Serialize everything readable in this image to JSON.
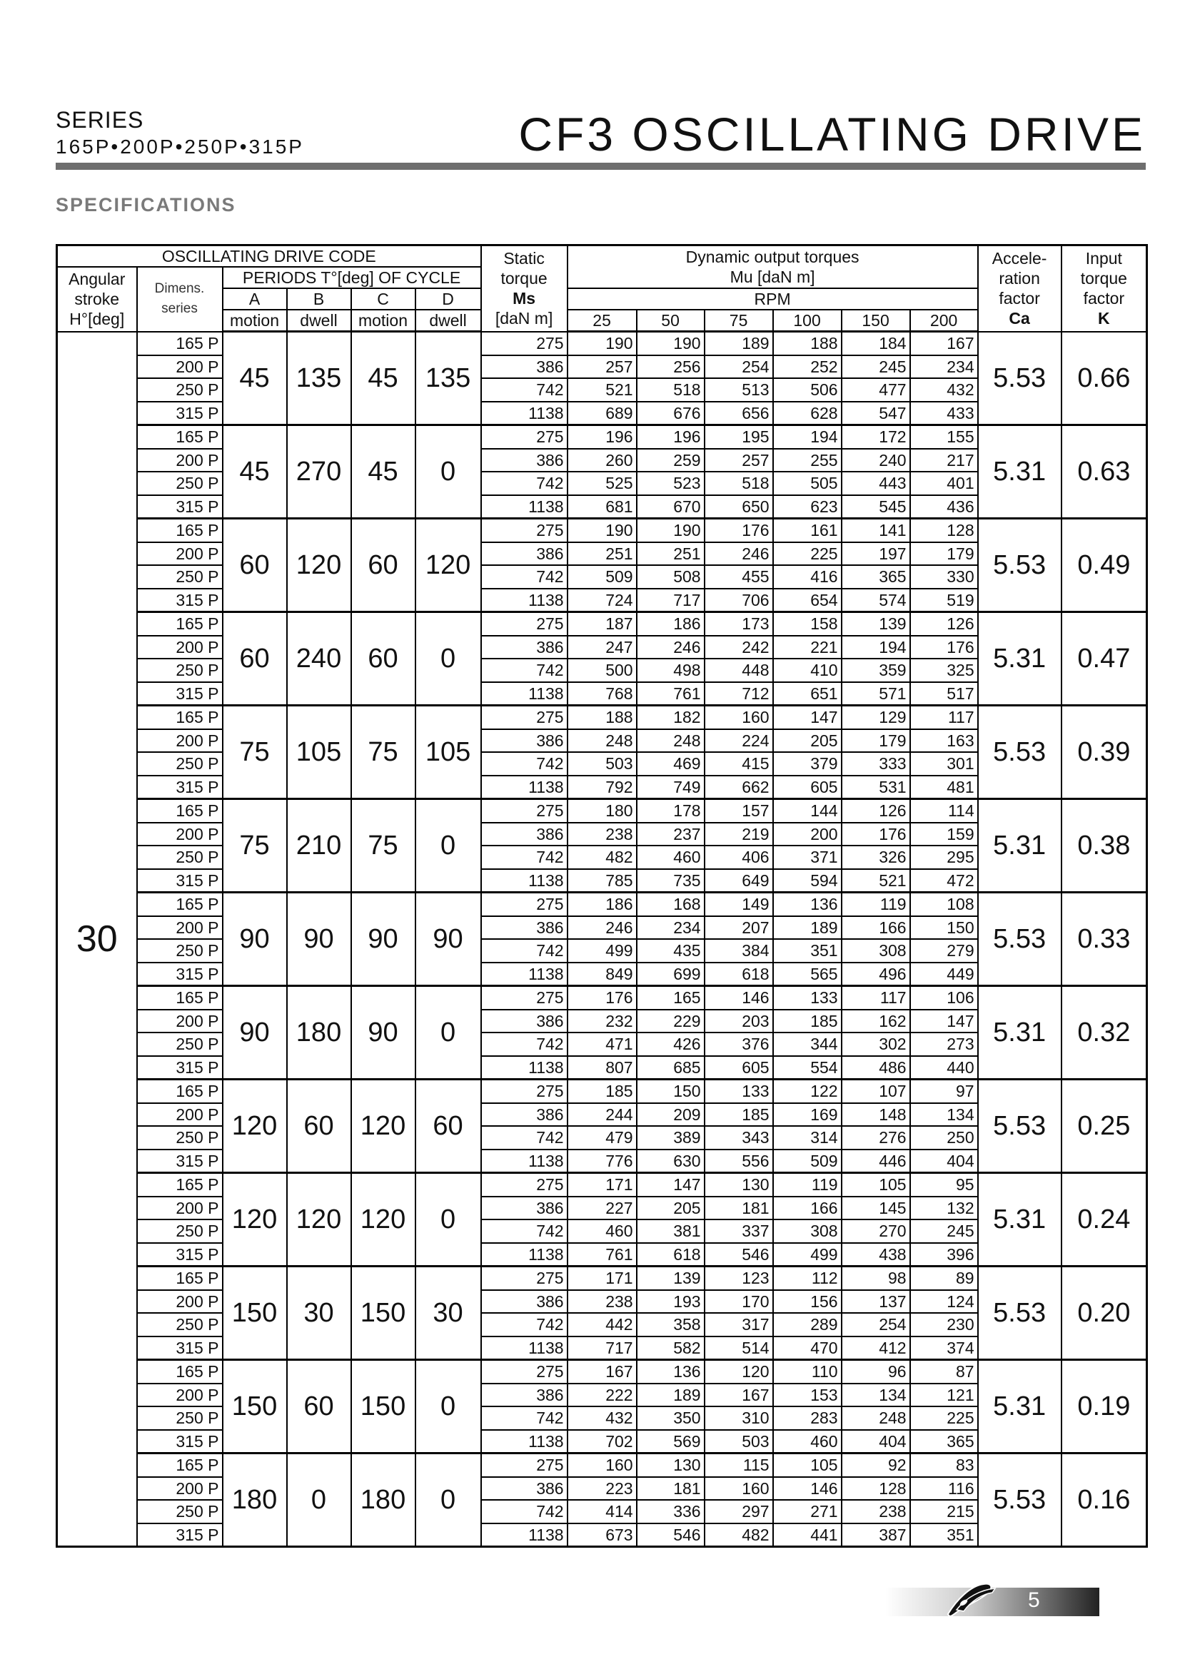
{
  "header": {
    "series_label": "SERIES",
    "series_models": "165P•200P•250P•315P",
    "title": "CF3 OSCILLATING DRIVE",
    "section": "SPECIFICATIONS"
  },
  "table_header": {
    "drive_code": "OSCILLATING DRIVE CODE",
    "angular": [
      "Angular",
      "stroke",
      "H°[deg]"
    ],
    "dimens": [
      "Dimens.",
      "series"
    ],
    "periods": "PERIODS T°[deg] OF CYCLE",
    "period_cols": [
      {
        "letter": "A",
        "type": "motion"
      },
      {
        "letter": "B",
        "type": "dwell"
      },
      {
        "letter": "C",
        "type": "motion"
      },
      {
        "letter": "D",
        "type": "dwell"
      }
    ],
    "static": [
      "Static",
      "torque",
      "Ms",
      "[daN m]"
    ],
    "dynamic": "Dynamic output torques",
    "dynamic_unit": "Mu [daN m]",
    "rpm": "RPM",
    "rpm_values": [
      "25",
      "50",
      "75",
      "100",
      "150",
      "200"
    ],
    "accel": [
      "Accele-",
      "ration",
      "factor",
      "Ca"
    ],
    "input": [
      "Input",
      "torque",
      "factor",
      "K"
    ]
  },
  "angular_stroke": "30",
  "dims": [
    "165 P",
    "200 P",
    "250 P",
    "315 P"
  ],
  "groups": [
    {
      "A": "45",
      "B": "135",
      "C": "45",
      "D": "135",
      "Ca": "5.53",
      "K": "0.66",
      "rows": [
        [
          "275",
          "190",
          "190",
          "189",
          "188",
          "184",
          "167"
        ],
        [
          "386",
          "257",
          "256",
          "254",
          "252",
          "245",
          "234"
        ],
        [
          "742",
          "521",
          "518",
          "513",
          "506",
          "477",
          "432"
        ],
        [
          "1138",
          "689",
          "676",
          "656",
          "628",
          "547",
          "433"
        ]
      ]
    },
    {
      "A": "45",
      "B": "270",
      "C": "45",
      "D": "0",
      "Ca": "5.31",
      "K": "0.63",
      "rows": [
        [
          "275",
          "196",
          "196",
          "195",
          "194",
          "172",
          "155"
        ],
        [
          "386",
          "260",
          "259",
          "257",
          "255",
          "240",
          "217"
        ],
        [
          "742",
          "525",
          "523",
          "518",
          "505",
          "443",
          "401"
        ],
        [
          "1138",
          "681",
          "670",
          "650",
          "623",
          "545",
          "436"
        ]
      ]
    },
    {
      "A": "60",
      "B": "120",
      "C": "60",
      "D": "120",
      "Ca": "5.53",
      "K": "0.49",
      "rows": [
        [
          "275",
          "190",
          "190",
          "176",
          "161",
          "141",
          "128"
        ],
        [
          "386",
          "251",
          "251",
          "246",
          "225",
          "197",
          "179"
        ],
        [
          "742",
          "509",
          "508",
          "455",
          "416",
          "365",
          "330"
        ],
        [
          "1138",
          "724",
          "717",
          "706",
          "654",
          "574",
          "519"
        ]
      ]
    },
    {
      "A": "60",
      "B": "240",
      "C": "60",
      "D": "0",
      "Ca": "5.31",
      "K": "0.47",
      "rows": [
        [
          "275",
          "187",
          "186",
          "173",
          "158",
          "139",
          "126"
        ],
        [
          "386",
          "247",
          "246",
          "242",
          "221",
          "194",
          "176"
        ],
        [
          "742",
          "500",
          "498",
          "448",
          "410",
          "359",
          "325"
        ],
        [
          "1138",
          "768",
          "761",
          "712",
          "651",
          "571",
          "517"
        ]
      ]
    },
    {
      "A": "75",
      "B": "105",
      "C": "75",
      "D": "105",
      "Ca": "5.53",
      "K": "0.39",
      "rows": [
        [
          "275",
          "188",
          "182",
          "160",
          "147",
          "129",
          "117"
        ],
        [
          "386",
          "248",
          "248",
          "224",
          "205",
          "179",
          "163"
        ],
        [
          "742",
          "503",
          "469",
          "415",
          "379",
          "333",
          "301"
        ],
        [
          "1138",
          "792",
          "749",
          "662",
          "605",
          "531",
          "481"
        ]
      ]
    },
    {
      "A": "75",
      "B": "210",
      "C": "75",
      "D": "0",
      "Ca": "5.31",
      "K": "0.38",
      "rows": [
        [
          "275",
          "180",
          "178",
          "157",
          "144",
          "126",
          "114"
        ],
        [
          "386",
          "238",
          "237",
          "219",
          "200",
          "176",
          "159"
        ],
        [
          "742",
          "482",
          "460",
          "406",
          "371",
          "326",
          "295"
        ],
        [
          "1138",
          "785",
          "735",
          "649",
          "594",
          "521",
          "472"
        ]
      ]
    },
    {
      "A": "90",
      "B": "90",
      "C": "90",
      "D": "90",
      "Ca": "5.53",
      "K": "0.33",
      "rows": [
        [
          "275",
          "186",
          "168",
          "149",
          "136",
          "119",
          "108"
        ],
        [
          "386",
          "246",
          "234",
          "207",
          "189",
          "166",
          "150"
        ],
        [
          "742",
          "499",
          "435",
          "384",
          "351",
          "308",
          "279"
        ],
        [
          "1138",
          "849",
          "699",
          "618",
          "565",
          "496",
          "449"
        ]
      ]
    },
    {
      "A": "90",
      "B": "180",
      "C": "90",
      "D": "0",
      "Ca": "5.31",
      "K": "0.32",
      "rows": [
        [
          "275",
          "176",
          "165",
          "146",
          "133",
          "117",
          "106"
        ],
        [
          "386",
          "232",
          "229",
          "203",
          "185",
          "162",
          "147"
        ],
        [
          "742",
          "471",
          "426",
          "376",
          "344",
          "302",
          "273"
        ],
        [
          "1138",
          "807",
          "685",
          "605",
          "554",
          "486",
          "440"
        ]
      ]
    },
    {
      "A": "120",
      "B": "60",
      "C": "120",
      "D": "60",
      "Ca": "5.53",
      "K": "0.25",
      "rows": [
        [
          "275",
          "185",
          "150",
          "133",
          "122",
          "107",
          "97"
        ],
        [
          "386",
          "244",
          "209",
          "185",
          "169",
          "148",
          "134"
        ],
        [
          "742",
          "479",
          "389",
          "343",
          "314",
          "276",
          "250"
        ],
        [
          "1138",
          "776",
          "630",
          "556",
          "509",
          "446",
          "404"
        ]
      ]
    },
    {
      "A": "120",
      "B": "120",
      "C": "120",
      "D": "0",
      "Ca": "5.31",
      "K": "0.24",
      "rows": [
        [
          "275",
          "171",
          "147",
          "130",
          "119",
          "105",
          "95"
        ],
        [
          "386",
          "227",
          "205",
          "181",
          "166",
          "145",
          "132"
        ],
        [
          "742",
          "460",
          "381",
          "337",
          "308",
          "270",
          "245"
        ],
        [
          "1138",
          "761",
          "618",
          "546",
          "499",
          "438",
          "396"
        ]
      ]
    },
    {
      "A": "150",
      "B": "30",
      "C": "150",
      "D": "30",
      "Ca": "5.53",
      "K": "0.20",
      "rows": [
        [
          "275",
          "171",
          "139",
          "123",
          "112",
          "98",
          "89"
        ],
        [
          "386",
          "238",
          "193",
          "170",
          "156",
          "137",
          "124"
        ],
        [
          "742",
          "442",
          "358",
          "317",
          "289",
          "254",
          "230"
        ],
        [
          "1138",
          "717",
          "582",
          "514",
          "470",
          "412",
          "374"
        ]
      ]
    },
    {
      "A": "150",
      "B": "60",
      "C": "150",
      "D": "0",
      "Ca": "5.31",
      "K": "0.19",
      "rows": [
        [
          "275",
          "167",
          "136",
          "120",
          "110",
          "96",
          "87"
        ],
        [
          "386",
          "222",
          "189",
          "167",
          "153",
          "134",
          "121"
        ],
        [
          "742",
          "432",
          "350",
          "310",
          "283",
          "248",
          "225"
        ],
        [
          "1138",
          "702",
          "569",
          "503",
          "460",
          "404",
          "365"
        ]
      ]
    },
    {
      "A": "180",
      "B": "0",
      "C": "180",
      "D": "0",
      "Ca": "5.53",
      "K": "0.16",
      "rows": [
        [
          "275",
          "160",
          "130",
          "115",
          "105",
          "92",
          "83"
        ],
        [
          "386",
          "223",
          "181",
          "160",
          "146",
          "128",
          "116"
        ],
        [
          "742",
          "414",
          "336",
          "297",
          "271",
          "238",
          "215"
        ],
        [
          "1138",
          "673",
          "546",
          "482",
          "441",
          "387",
          "351"
        ]
      ]
    }
  ],
  "footer": {
    "page_number": "5",
    "logo_icon": "brand-logo-icon"
  }
}
